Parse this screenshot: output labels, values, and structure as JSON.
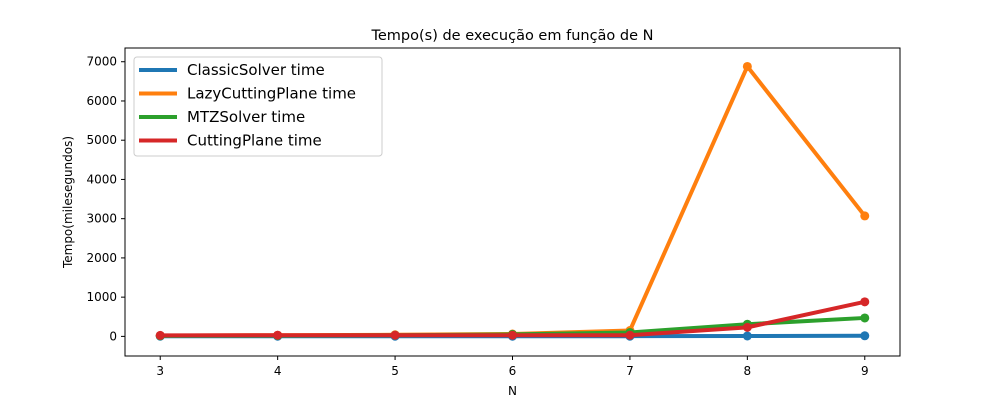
{
  "chart_data": {
    "type": "line",
    "title": "Tempo(s) de execução em função de N",
    "xlabel": "N",
    "ylabel": "Tempo(milesegundos)",
    "x": [
      3,
      4,
      5,
      6,
      7,
      8,
      9
    ],
    "xlim": [
      2.7,
      9.3
    ],
    "ylim": [
      -500,
      7350
    ],
    "xticks": [
      "3",
      "4",
      "5",
      "6",
      "7",
      "8",
      "9"
    ],
    "yticks": [
      "0",
      "1000",
      "2000",
      "3000",
      "4000",
      "5000",
      "6000",
      "7000"
    ],
    "legend_position": "top-left",
    "grid": false,
    "series": [
      {
        "name": "ClassicSolver time",
        "color": "#1f77b4",
        "values": [
          5,
          5,
          5,
          5,
          5,
          10,
          15
        ]
      },
      {
        "name": "LazyCuttingPlane time",
        "color": "#ff7f0e",
        "values": [
          20,
          30,
          40,
          60,
          150,
          6880,
          3070
        ]
      },
      {
        "name": "MTZSolver time",
        "color": "#2ca02c",
        "values": [
          15,
          20,
          30,
          50,
          100,
          310,
          470
        ]
      },
      {
        "name": "CuttingPlane time",
        "color": "#d62728",
        "values": [
          25,
          30,
          30,
          30,
          30,
          230,
          880
        ]
      }
    ]
  }
}
